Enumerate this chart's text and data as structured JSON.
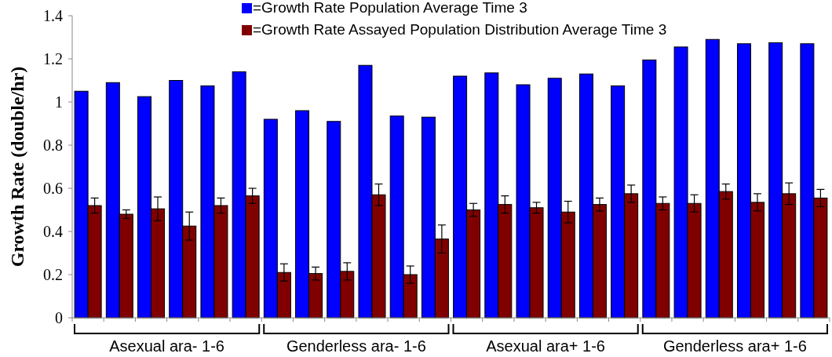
{
  "chart_data": {
    "type": "bar",
    "ylabel": "Growth Rate (double/hr)",
    "categories": [
      null,
      null,
      null,
      null,
      null,
      null,
      null,
      null,
      null,
      null,
      null,
      null,
      null,
      null,
      null,
      null,
      null,
      null,
      null,
      null,
      null,
      null,
      null,
      null
    ],
    "series": [
      {
        "name": "=Growth Rate Population Average Time 3",
        "color": "#0000ff",
        "values": [
          1.05,
          1.09,
          1.025,
          1.1,
          1.075,
          1.14,
          0.92,
          0.96,
          0.91,
          1.17,
          0.935,
          0.93,
          1.12,
          1.135,
          1.08,
          1.11,
          1.13,
          1.075,
          1.195,
          1.255,
          1.29,
          1.27,
          1.275,
          1.27
        ]
      },
      {
        "name": "=Growth Rate Assayed Population Distribution Average Time 3",
        "color": "#800000",
        "values": [
          0.52,
          0.48,
          0.505,
          0.425,
          0.52,
          0.565,
          0.21,
          0.205,
          0.215,
          0.57,
          0.2,
          0.365,
          0.5,
          0.525,
          0.51,
          0.49,
          0.525,
          0.575,
          0.53,
          0.53,
          0.585,
          0.535,
          0.575,
          0.555
        ],
        "errors": [
          0.035,
          0.02,
          0.055,
          0.065,
          0.035,
          0.035,
          0.04,
          0.03,
          0.04,
          0.05,
          0.04,
          0.065,
          0.03,
          0.04,
          0.025,
          0.05,
          0.03,
          0.04,
          0.03,
          0.04,
          0.035,
          0.04,
          0.05,
          0.04
        ]
      }
    ],
    "ylim": [
      0,
      1.4
    ],
    "yticks": [
      0,
      0.2,
      0.4,
      0.6,
      0.8,
      1,
      1.2,
      1.4
    ],
    "grid": false,
    "legend": "top",
    "annotations": [
      "Asexual ara- 1-6",
      "Genderless ara- 1-6",
      "Asexual ara+ 1-6",
      "Genderless ara+ 1-6"
    ]
  }
}
